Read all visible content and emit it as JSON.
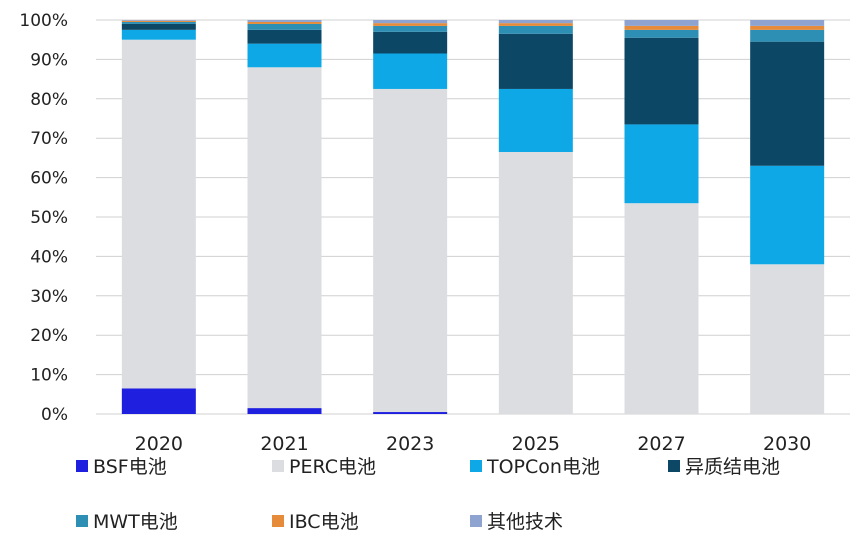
{
  "chart_data": {
    "type": "bar",
    "stacked": true,
    "categories": [
      "2020",
      "2021",
      "2023",
      "2025",
      "2027",
      "2030"
    ],
    "ylim": [
      0,
      100
    ],
    "yticks": [
      "0%",
      "10%",
      "20%",
      "30%",
      "40%",
      "50%",
      "60%",
      "70%",
      "80%",
      "90%",
      "100%"
    ],
    "grid": true,
    "legend_position": "bottom",
    "series": [
      {
        "name": "BSF电池",
        "color": "#1f1fe0",
        "values": [
          6.5,
          1.5,
          0.5,
          0,
          0,
          0
        ]
      },
      {
        "name": "PERC电池",
        "color": "#dcdde0",
        "values": [
          88.5,
          86.5,
          82,
          66.5,
          53.5,
          38
        ]
      },
      {
        "name": "TOPCon电池",
        "color": "#0ea8e6",
        "values": [
          2.5,
          6,
          9,
          16,
          20,
          25
        ]
      },
      {
        "name": "异质结电池",
        "color": "#0c4766",
        "values": [
          1.5,
          3.5,
          5.5,
          14,
          22,
          31.5
        ]
      },
      {
        "name": "MWT电池",
        "color": "#2e8fb4",
        "values": [
          0.5,
          1.5,
          1.5,
          2,
          2,
          3
        ]
      },
      {
        "name": "IBC电池",
        "color": "#e58b3a",
        "values": [
          0.3,
          0.5,
          0.7,
          0.7,
          1,
          1
        ]
      },
      {
        "name": "其他技术",
        "color": "#8ea3cf",
        "values": [
          0.2,
          0.5,
          0.8,
          0.8,
          1.5,
          1.5
        ]
      }
    ]
  }
}
